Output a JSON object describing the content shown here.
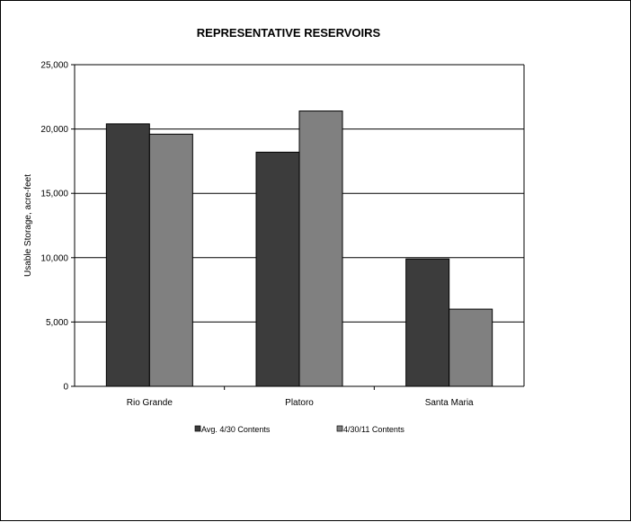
{
  "chart_data": {
    "type": "bar",
    "title": "REPRESENTATIVE  RESERVOIRS",
    "ylabel": "Usable Storage, acre-feet",
    "xlabel": "",
    "categories": [
      "Rio Grande",
      "Platoro",
      "Santa Maria"
    ],
    "series": [
      {
        "name": "Avg. 4/30 Contents",
        "values": [
          20400,
          18200,
          9900
        ],
        "color": "#3c3c3c"
      },
      {
        "name": "4/30/11 Contents",
        "values": [
          19600,
          21400,
          6000
        ],
        "color": "#808080"
      }
    ],
    "ylim": [
      0,
      25000
    ],
    "yticks": [
      "0",
      "5,000",
      "10,000",
      "15,000",
      "20,000",
      "25,000"
    ],
    "ytick_values": [
      0,
      5000,
      10000,
      15000,
      20000,
      25000
    ],
    "grid": true,
    "legend_position": "bottom"
  }
}
